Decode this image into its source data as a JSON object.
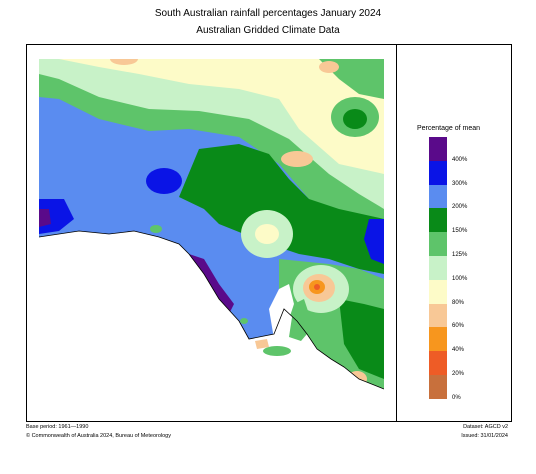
{
  "header": {
    "title": "South Australian rainfall percentages   January 2024",
    "subtitle": "Australian Gridded Climate Data"
  },
  "legend": {
    "title": "Percentage of mean",
    "classes": [
      {
        "label": "400%",
        "color": "#5a0a8a"
      },
      {
        "label": "300%",
        "color": "#0a14e6"
      },
      {
        "label": "200%",
        "color": "#5a8cf0"
      },
      {
        "label": "150%",
        "color": "#098a18"
      },
      {
        "label": "125%",
        "color": "#5ec46a"
      },
      {
        "label": "100%",
        "color": "#c8f2c8"
      },
      {
        "label": "80%",
        "color": "#fdfbc8"
      },
      {
        "label": "60%",
        "color": "#f8c896"
      },
      {
        "label": "40%",
        "color": "#f7961e"
      },
      {
        "label": "20%",
        "color": "#ee5c26"
      },
      {
        "label": "0%",
        "color": "#c8703c"
      }
    ]
  },
  "footer": {
    "base_period": "Base period: 1961—1990",
    "dataset": "Dataset: AGCD v2",
    "copyright": "© Commonwealth of Australia 2024, Bureau of Meteorology",
    "issued": "Issued: 31/01/2024"
  },
  "colors": {
    "ocean": "#ffffff",
    "coastline": "#000000"
  }
}
